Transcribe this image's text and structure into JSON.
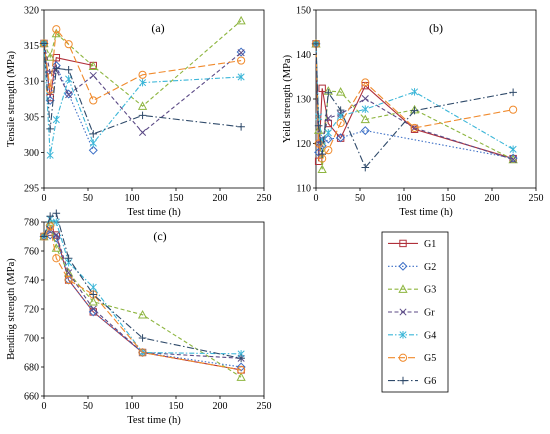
{
  "figure": {
    "legend_items": [
      {
        "name": "G1",
        "color": "#b0303a",
        "dash": "solid",
        "marker": "square"
      },
      {
        "name": "G2",
        "color": "#3c6fc6",
        "dash": "dot",
        "marker": "diamond"
      },
      {
        "name": "G3",
        "color": "#8db53f",
        "dash": "dash",
        "marker": "triangle"
      },
      {
        "name": "Gr",
        "color": "#5b4a86",
        "dash": "dash",
        "marker": "x"
      },
      {
        "name": "G4",
        "color": "#3bb6d8",
        "dash": "dashdot",
        "marker": "asterisk"
      },
      {
        "name": "G5",
        "color": "#f08a2c",
        "dash": "longdash",
        "marker": "circle"
      },
      {
        "name": "G6",
        "color": "#2f4a6a",
        "dash": "longdashdot",
        "marker": "plus"
      }
    ]
  },
  "chart_data": [
    {
      "type": "line",
      "panel": "(a)",
      "xlabel": "Test time (h)",
      "ylabel": "Tensile strength (MPa)",
      "xlim": [
        0,
        250
      ],
      "ylim": [
        295,
        320
      ],
      "xticks": [
        0,
        50,
        100,
        150,
        200,
        250
      ],
      "yticks": [
        295,
        300,
        305,
        310,
        315,
        320
      ],
      "grid": false,
      "series": [
        {
          "name": "G1",
          "x": [
            0,
            7,
            14,
            56,
            112,
            224
          ],
          "y": [
            315.3,
            307.7,
            313.3,
            312.2,
            null,
            null
          ]
        },
        {
          "name": "G2",
          "x": [
            0,
            7,
            14,
            28,
            56,
            112,
            224
          ],
          "y": [
            315.3,
            307.3,
            312.2,
            308.2,
            300.3,
            null,
            314.1
          ]
        },
        {
          "name": "G3",
          "x": [
            0,
            7,
            14,
            56,
            112,
            224
          ],
          "y": [
            315.3,
            313.4,
            316.7,
            312.1,
            306.5,
            318.5
          ]
        },
        {
          "name": "Gr",
          "x": [
            0,
            7,
            14,
            28,
            56,
            112,
            224
          ],
          "y": [
            315.3,
            311.2,
            311.6,
            308.1,
            310.8,
            302.8,
            314.0
          ]
        },
        {
          "name": "G4",
          "x": [
            0,
            7,
            14,
            28,
            56,
            112,
            224
          ],
          "y": [
            315.3,
            299.6,
            304.6,
            310.3,
            301.3,
            309.8,
            310.6
          ]
        },
        {
          "name": "G5",
          "x": [
            0,
            7,
            14,
            28,
            56,
            112,
            224
          ],
          "y": [
            315.3,
            308.8,
            317.3,
            315.2,
            307.3,
            310.9,
            312.9
          ]
        },
        {
          "name": "G6",
          "x": [
            0,
            7,
            14,
            28,
            56,
            112,
            224
          ],
          "y": [
            315.3,
            303.3,
            311.8,
            311.6,
            302.6,
            305.2,
            303.6
          ]
        }
      ]
    },
    {
      "type": "line",
      "panel": "(b)",
      "xlabel": "Test time (h)",
      "ylabel": "Yeild strength (MPa)",
      "xlim": [
        0,
        250
      ],
      "ylim": [
        110,
        150
      ],
      "xticks": [
        0,
        50,
        100,
        150,
        200,
        250
      ],
      "yticks": [
        110,
        120,
        130,
        140,
        150
      ],
      "grid": false,
      "series": [
        {
          "name": "G1",
          "x": [
            0,
            3,
            7,
            14,
            28,
            56,
            112,
            224
          ],
          "y": [
            142.4,
            116,
            132.4,
            124.5,
            121.2,
            133,
            123.2,
            116.6
          ]
        },
        {
          "name": "G2",
          "x": [
            0,
            3,
            7,
            14,
            28,
            56,
            224
          ],
          "y": [
            142.4,
            118,
            119.5,
            121.0,
            121.3,
            122.9,
            116.7
          ]
        },
        {
          "name": "G3",
          "x": [
            0,
            3,
            7,
            14,
            28,
            56,
            112,
            224
          ],
          "y": [
            142.4,
            123,
            114.2,
            131.8,
            131.6,
            125.4,
            127.6,
            116.4
          ]
        },
        {
          "name": "Gr",
          "x": [
            0,
            3,
            7,
            14,
            28,
            56,
            112,
            224
          ],
          "y": [
            142.4,
            120,
            121.0,
            125.7,
            126.6,
            130.1,
            123.5,
            116.4
          ]
        },
        {
          "name": "G4",
          "x": [
            0,
            3,
            7,
            14,
            28,
            56,
            112,
            224
          ],
          "y": [
            142.4,
            126,
            120.6,
            122.4,
            126.2,
            127.7,
            131.6,
            118.7
          ]
        },
        {
          "name": "G5",
          "x": [
            0,
            3,
            7,
            14,
            28,
            56,
            112,
            224
          ],
          "y": [
            142.4,
            120,
            116.6,
            118.5,
            124.6,
            133.7,
            123.5,
            127.6
          ]
        },
        {
          "name": "G6",
          "x": [
            0,
            3,
            7,
            14,
            28,
            56,
            112,
            224
          ],
          "y": [
            142.4,
            124,
            117.6,
            131.4,
            127.5,
            114.6,
            127.4,
            131.5
          ]
        }
      ]
    },
    {
      "type": "line",
      "panel": "(c)",
      "xlabel": "Test time (h)",
      "ylabel": "Bending strength (MPa)",
      "xlim": [
        0,
        250
      ],
      "ylim": [
        660,
        780
      ],
      "xticks": [
        0,
        50,
        100,
        150,
        200,
        250
      ],
      "yticks": [
        660,
        680,
        700,
        720,
        740,
        760,
        780
      ],
      "grid": false,
      "series": [
        {
          "name": "G1",
          "x": [
            0,
            7,
            14,
            28,
            56,
            112,
            224
          ],
          "y": [
            770,
            773,
            771,
            740,
            718,
            690,
            678
          ]
        },
        {
          "name": "G2",
          "x": [
            0,
            7,
            14,
            28,
            56,
            112,
            224
          ],
          "y": [
            770,
            771,
            769,
            740,
            718,
            690,
            680
          ]
        },
        {
          "name": "G3",
          "x": [
            0,
            7,
            14,
            28,
            56,
            112,
            224
          ],
          "y": [
            770,
            780,
            762,
            745,
            725,
            716,
            673
          ]
        },
        {
          "name": "Gr",
          "x": [
            0,
            7,
            14,
            28,
            56,
            112,
            224
          ],
          "y": [
            770,
            775,
            771,
            745,
            720,
            690,
            686
          ]
        },
        {
          "name": "G4",
          "x": [
            0,
            7,
            14,
            28,
            56,
            112,
            224
          ],
          "y": [
            770,
            782,
            780,
            752,
            735,
            690,
            689
          ]
        },
        {
          "name": "G5",
          "x": [
            0,
            7,
            14,
            28,
            56,
            112,
            224
          ],
          "y": [
            770,
            777,
            755,
            740,
            730,
            690,
            678
          ]
        },
        {
          "name": "G6",
          "x": [
            0,
            7,
            14,
            28,
            56,
            112,
            224
          ],
          "y": [
            770,
            784,
            786,
            755,
            730,
            700,
            686
          ]
        }
      ]
    }
  ]
}
